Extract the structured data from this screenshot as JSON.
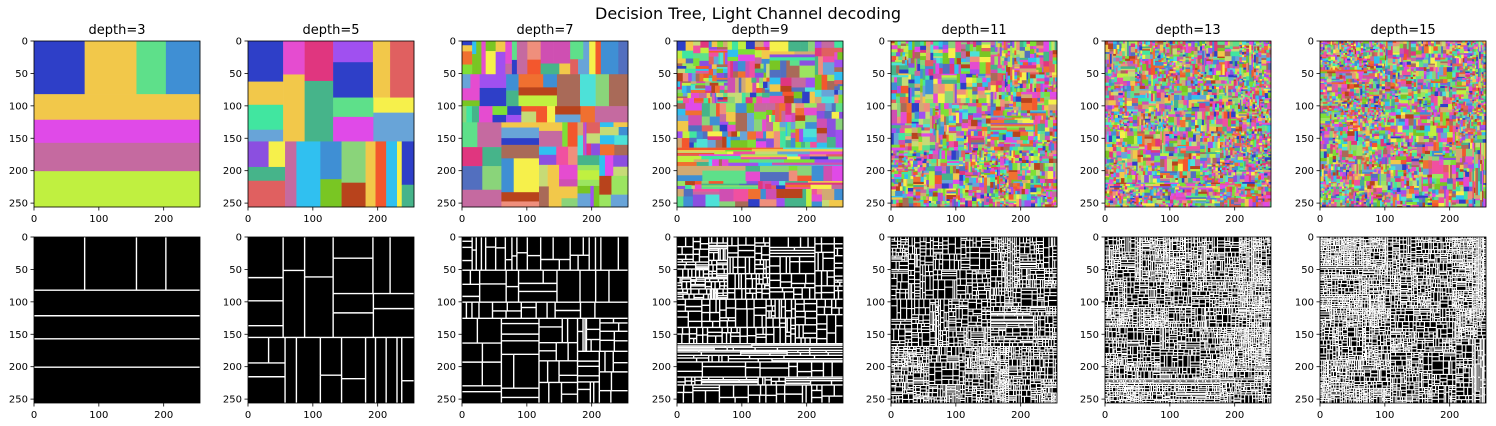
{
  "figure": {
    "title": "Decision Tree, Light Channel decoding"
  },
  "chart_data": [
    {
      "type": "heatmap",
      "panel": "color",
      "title": "depth=3",
      "depth": 3,
      "xlim": [
        0,
        256
      ],
      "ylim": [
        256,
        0
      ],
      "xticks": [
        "0",
        "100",
        "200"
      ],
      "yticks": [
        "0",
        "50",
        "100",
        "150",
        "200",
        "250"
      ]
    },
    {
      "type": "heatmap",
      "panel": "color",
      "title": "depth=5",
      "depth": 5,
      "xlim": [
        0,
        256
      ],
      "ylim": [
        256,
        0
      ],
      "xticks": [
        "0",
        "100",
        "200"
      ],
      "yticks": [
        "0",
        "50",
        "100",
        "150",
        "200",
        "250"
      ]
    },
    {
      "type": "heatmap",
      "panel": "color",
      "title": "depth=7",
      "depth": 7,
      "xlim": [
        0,
        256
      ],
      "ylim": [
        256,
        0
      ],
      "xticks": [
        "0",
        "100",
        "200"
      ],
      "yticks": [
        "0",
        "50",
        "100",
        "150",
        "200",
        "250"
      ]
    },
    {
      "type": "heatmap",
      "panel": "color",
      "title": "depth=9",
      "depth": 9,
      "xlim": [
        0,
        256
      ],
      "ylim": [
        256,
        0
      ],
      "xticks": [
        "0",
        "100",
        "200"
      ],
      "yticks": [
        "0",
        "50",
        "100",
        "150",
        "200",
        "250"
      ]
    },
    {
      "type": "heatmap",
      "panel": "color",
      "title": "depth=11",
      "depth": 11,
      "xlim": [
        0,
        256
      ],
      "ylim": [
        256,
        0
      ],
      "xticks": [
        "0",
        "100",
        "200"
      ],
      "yticks": [
        "0",
        "50",
        "100",
        "150",
        "200",
        "250"
      ]
    },
    {
      "type": "heatmap",
      "panel": "color",
      "title": "depth=13",
      "depth": 13,
      "xlim": [
        0,
        256
      ],
      "ylim": [
        256,
        0
      ],
      "xticks": [
        "0",
        "100",
        "200"
      ],
      "yticks": [
        "0",
        "50",
        "100",
        "150",
        "200",
        "250"
      ]
    },
    {
      "type": "heatmap",
      "panel": "color",
      "title": "depth=15",
      "depth": 15,
      "xlim": [
        0,
        256
      ],
      "ylim": [
        256,
        0
      ],
      "xticks": [
        "0",
        "100",
        "200"
      ],
      "yticks": [
        "0",
        "50",
        "100",
        "150",
        "200",
        "250"
      ]
    },
    {
      "type": "heatmap",
      "panel": "edges",
      "depth": 3,
      "xlim": [
        0,
        256
      ],
      "ylim": [
        256,
        0
      ],
      "xticks": [
        "0",
        "100",
        "200"
      ],
      "yticks": [
        "0",
        "50",
        "100",
        "150",
        "200",
        "250"
      ]
    },
    {
      "type": "heatmap",
      "panel": "edges",
      "depth": 5,
      "xlim": [
        0,
        256
      ],
      "ylim": [
        256,
        0
      ],
      "xticks": [
        "0",
        "100",
        "200"
      ],
      "yticks": [
        "0",
        "50",
        "100",
        "150",
        "200",
        "250"
      ]
    },
    {
      "type": "heatmap",
      "panel": "edges",
      "depth": 7,
      "xlim": [
        0,
        256
      ],
      "ylim": [
        256,
        0
      ],
      "xticks": [
        "0",
        "100",
        "200"
      ],
      "yticks": [
        "0",
        "50",
        "100",
        "150",
        "200",
        "250"
      ]
    },
    {
      "type": "heatmap",
      "panel": "edges",
      "depth": 9,
      "xlim": [
        0,
        256
      ],
      "ylim": [
        256,
        0
      ],
      "xticks": [
        "0",
        "100",
        "200"
      ],
      "yticks": [
        "0",
        "50",
        "100",
        "150",
        "200",
        "250"
      ]
    },
    {
      "type": "heatmap",
      "panel": "edges",
      "depth": 11,
      "xlim": [
        0,
        256
      ],
      "ylim": [
        256,
        0
      ],
      "xticks": [
        "0",
        "100",
        "200"
      ],
      "yticks": [
        "0",
        "50",
        "100",
        "150",
        "200",
        "250"
      ]
    },
    {
      "type": "heatmap",
      "panel": "edges",
      "depth": 13,
      "xlim": [
        0,
        256
      ],
      "ylim": [
        256,
        0
      ],
      "xticks": [
        "0",
        "100",
        "200"
      ],
      "yticks": [
        "0",
        "50",
        "100",
        "150",
        "200",
        "250"
      ]
    },
    {
      "type": "heatmap",
      "panel": "edges",
      "depth": 15,
      "xlim": [
        0,
        256
      ],
      "ylim": [
        256,
        0
      ],
      "xticks": [
        "0",
        "100",
        "200"
      ],
      "yticks": [
        "0",
        "50",
        "100",
        "150",
        "200",
        "250"
      ]
    }
  ]
}
